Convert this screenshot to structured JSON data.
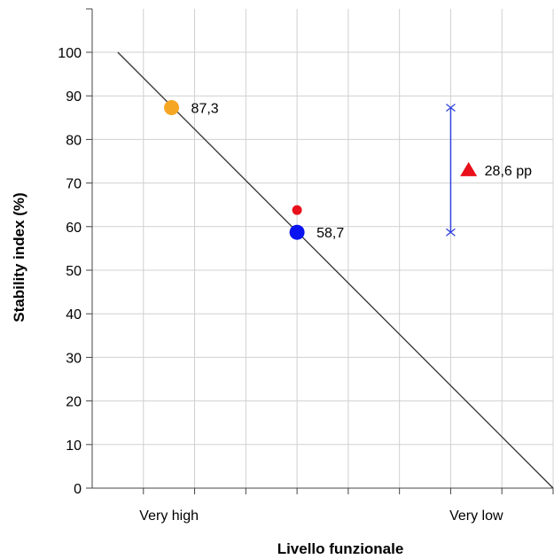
{
  "chart_data": {
    "type": "scatter",
    "title": "",
    "xlabel": "Livello funzionale",
    "ylabel": "Stability index (%)",
    "ylim": [
      0,
      100
    ],
    "yticks": [
      0,
      10,
      20,
      30,
      40,
      50,
      60,
      70,
      80,
      90,
      100
    ],
    "xlim": [
      0,
      9
    ],
    "x_tick_labels": [
      {
        "x": 1.5,
        "label": "Very high"
      },
      {
        "x": 7.5,
        "label": "Very low"
      }
    ],
    "grid": true,
    "trend_line": {
      "x": [
        0.5,
        9
      ],
      "y": [
        100,
        0
      ],
      "color": "#333333"
    },
    "points": [
      {
        "x": 1.55,
        "y": 87.3,
        "label": "87,3",
        "color": "#F5A623",
        "size": "large"
      },
      {
        "x": 4.0,
        "y": 58.7,
        "label": "58,7",
        "color": "#0A14F0",
        "size": "large"
      },
      {
        "x": 4.0,
        "y": 63.8,
        "label": "",
        "color": "#E8101A",
        "size": "small"
      }
    ],
    "interval": {
      "x": 7.0,
      "y_low": 58.7,
      "y_high": 87.3,
      "color": "#3344DD"
    },
    "annotation": {
      "x": 7.35,
      "y": 73.0,
      "marker": "triangle",
      "color": "#E8101A",
      "label": "28,6 pp"
    }
  }
}
